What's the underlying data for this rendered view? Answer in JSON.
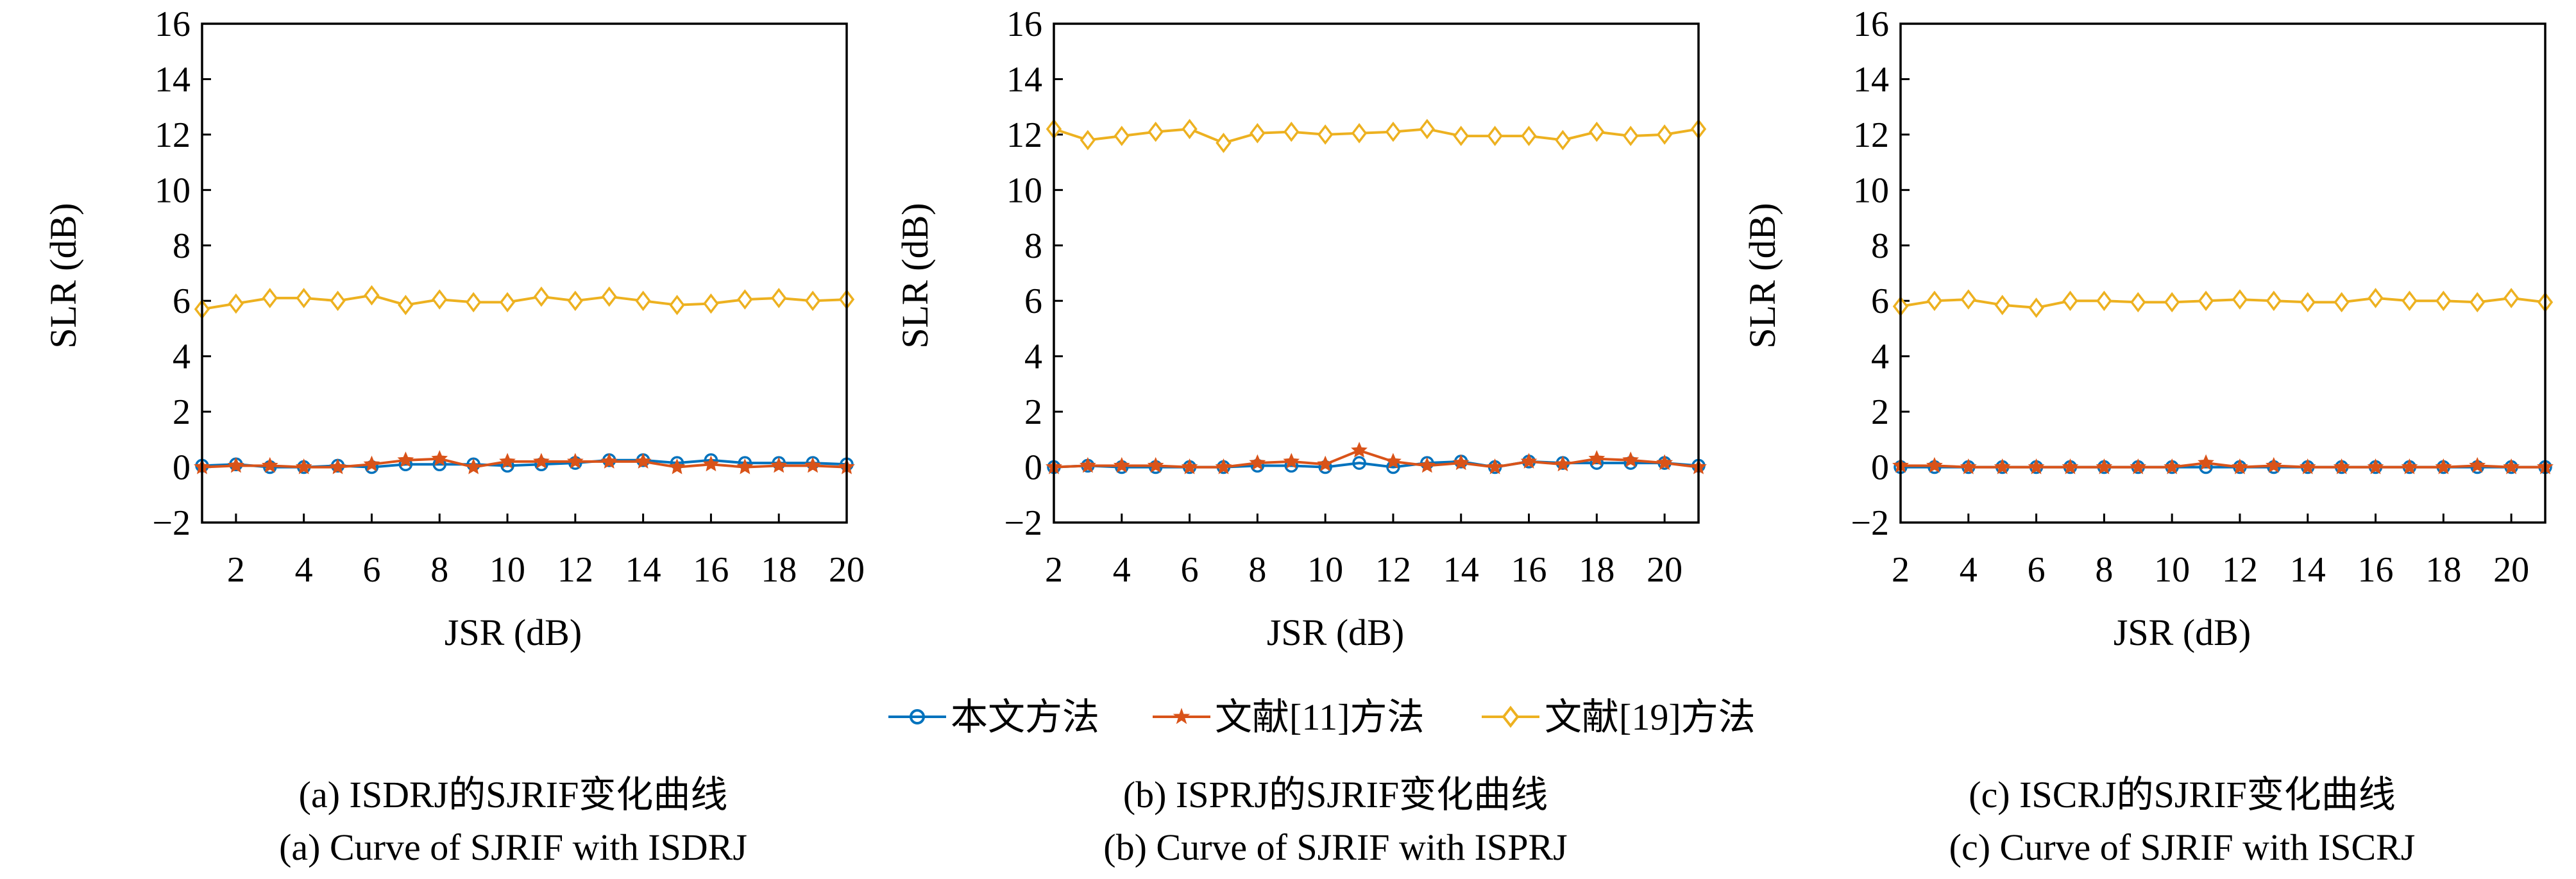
{
  "colors": {
    "series_1": "#0072BD",
    "series_2": "#D95319",
    "series_3": "#EDB120",
    "axis": "#000000"
  },
  "legend": {
    "placement": "bottom-center",
    "items": [
      {
        "label": "本文方法",
        "marker": "circle",
        "color": "#0072BD"
      },
      {
        "label": "文献[11]方法",
        "marker": "star",
        "color": "#D95319"
      },
      {
        "label": "文献[19]方法",
        "marker": "diamond",
        "color": "#EDB120"
      }
    ]
  },
  "chart_data": [
    {
      "type": "line",
      "xlabel": "JSR (dB)",
      "ylabel": "SLR (dB)",
      "xlim": [
        1,
        20
      ],
      "ylim": [
        -2,
        16
      ],
      "xticks": [
        2,
        4,
        6,
        8,
        10,
        12,
        14,
        16,
        18,
        20
      ],
      "yticks": [
        -2,
        0,
        2,
        4,
        6,
        8,
        10,
        12,
        14,
        16
      ],
      "ytick_labels": [
        "−2",
        "0",
        "2",
        "4",
        "6",
        "8",
        "10",
        "12",
        "14",
        "16"
      ],
      "grid": false,
      "caption_zh": "(a) ISDRJ的SJRIF变化曲线",
      "caption_en": "(a) Curve of SJRIF with ISDRJ",
      "x": [
        1,
        2,
        3,
        4,
        5,
        6,
        7,
        8,
        9,
        10,
        11,
        12,
        13,
        14,
        15,
        16,
        17,
        18,
        19,
        20
      ],
      "series": [
        {
          "name": "本文方法",
          "values": [
            0.05,
            0.1,
            0.0,
            0.0,
            0.05,
            0.0,
            0.1,
            0.1,
            0.1,
            0.05,
            0.1,
            0.15,
            0.25,
            0.25,
            0.15,
            0.25,
            0.15,
            0.15,
            0.15,
            0.1
          ]
        },
        {
          "name": "文献[11]方法",
          "values": [
            0.0,
            0.05,
            0.05,
            0.0,
            0.0,
            0.1,
            0.25,
            0.3,
            0.0,
            0.2,
            0.2,
            0.2,
            0.2,
            0.2,
            0.0,
            0.1,
            0.0,
            0.05,
            0.05,
            0.0
          ]
        },
        {
          "name": "文献[19]方法",
          "values": [
            5.7,
            5.9,
            6.1,
            6.1,
            6.0,
            6.2,
            5.85,
            6.05,
            5.95,
            5.95,
            6.15,
            6.0,
            6.15,
            6.0,
            5.85,
            5.9,
            6.05,
            6.1,
            6.0,
            6.05
          ]
        }
      ]
    },
    {
      "type": "line",
      "xlabel": "JSR (dB)",
      "ylabel": "SLR (dB)",
      "xlim": [
        2,
        21
      ],
      "ylim": [
        -2,
        16
      ],
      "xticks": [
        2,
        4,
        6,
        8,
        10,
        12,
        14,
        16,
        18,
        20
      ],
      "yticks": [
        -2,
        0,
        2,
        4,
        6,
        8,
        10,
        12,
        14,
        16
      ],
      "ytick_labels": [
        "−2",
        "0",
        "2",
        "4",
        "6",
        "8",
        "10",
        "12",
        "14",
        "16"
      ],
      "grid": false,
      "caption_zh": "(b) ISPRJ的SJRIF变化曲线",
      "caption_en": "(b) Curve of SJRIF with ISPRJ",
      "x": [
        2,
        3,
        4,
        5,
        6,
        7,
        8,
        9,
        10,
        11,
        12,
        13,
        14,
        15,
        16,
        17,
        18,
        19,
        20,
        21
      ],
      "series": [
        {
          "name": "本文方法",
          "values": [
            0.0,
            0.05,
            0.0,
            0.0,
            0.0,
            0.0,
            0.05,
            0.05,
            0.0,
            0.15,
            0.0,
            0.15,
            0.2,
            0.0,
            0.2,
            0.15,
            0.15,
            0.15,
            0.15,
            0.05
          ]
        },
        {
          "name": "文献[11]方法",
          "values": [
            0.0,
            0.05,
            0.05,
            0.05,
            0.0,
            0.0,
            0.15,
            0.2,
            0.1,
            0.6,
            0.2,
            0.05,
            0.15,
            0.0,
            0.2,
            0.1,
            0.3,
            0.25,
            0.15,
            0.0
          ]
        },
        {
          "name": "文献[19]方法",
          "values": [
            12.2,
            11.8,
            11.95,
            12.1,
            12.2,
            11.7,
            12.05,
            12.1,
            12.0,
            12.05,
            12.1,
            12.2,
            11.95,
            11.95,
            11.95,
            11.8,
            12.1,
            11.95,
            12.0,
            12.2
          ]
        }
      ]
    },
    {
      "type": "line",
      "xlabel": "JSR (dB)",
      "ylabel": "SLR (dB)",
      "xlim": [
        2,
        21
      ],
      "ylim": [
        -2,
        16
      ],
      "xticks": [
        2,
        4,
        6,
        8,
        10,
        12,
        14,
        16,
        18,
        20
      ],
      "yticks": [
        -2,
        0,
        2,
        4,
        6,
        8,
        10,
        12,
        14,
        16
      ],
      "ytick_labels": [
        "−2",
        "0",
        "2",
        "4",
        "6",
        "8",
        "10",
        "12",
        "14",
        "16"
      ],
      "grid": false,
      "caption_zh": "(c) ISCRJ的SJRIF变化曲线",
      "caption_en": "(c) Curve of SJRIF with ISCRJ",
      "x": [
        2,
        3,
        4,
        5,
        6,
        7,
        8,
        9,
        10,
        11,
        12,
        13,
        14,
        15,
        16,
        17,
        18,
        19,
        20,
        21
      ],
      "series": [
        {
          "name": "本文方法",
          "values": [
            0.0,
            0.0,
            0.0,
            0.0,
            0.0,
            0.0,
            0.0,
            0.0,
            0.0,
            0.0,
            0.0,
            0.0,
            0.0,
            0.0,
            0.0,
            0.0,
            0.0,
            0.0,
            0.0,
            0.0
          ]
        },
        {
          "name": "文献[11]方法",
          "values": [
            0.05,
            0.05,
            0.0,
            0.0,
            0.0,
            0.0,
            0.0,
            0.0,
            0.0,
            0.15,
            0.0,
            0.05,
            0.0,
            0.0,
            0.0,
            0.0,
            0.0,
            0.05,
            0.0,
            0.0
          ]
        },
        {
          "name": "文献[19]方法",
          "values": [
            5.8,
            6.0,
            6.05,
            5.85,
            5.75,
            6.0,
            6.0,
            5.95,
            5.95,
            6.0,
            6.05,
            6.0,
            5.95,
            5.95,
            6.1,
            6.0,
            6.0,
            5.95,
            6.1,
            5.95
          ]
        }
      ]
    }
  ]
}
